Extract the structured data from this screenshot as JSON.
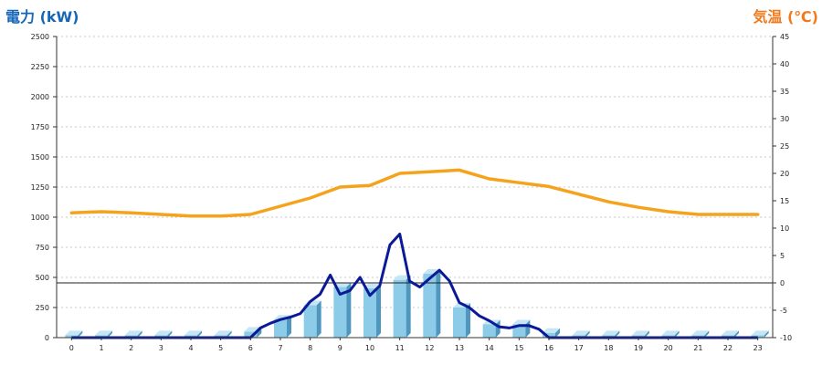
{
  "chart_data": {
    "type": "bar+line",
    "title_left": "電力 (kW)",
    "title_right": "気温 (℃)",
    "categories": [
      "0",
      "1",
      "2",
      "3",
      "4",
      "5",
      "6",
      "7",
      "8",
      "9",
      "10",
      "11",
      "12",
      "13",
      "14",
      "15",
      "16",
      "17",
      "18",
      "19",
      "20",
      "21",
      "22",
      "23"
    ],
    "y_left": {
      "min": 0,
      "max": 2500,
      "ticks": [
        "0",
        "250",
        "500",
        "750",
        "1000",
        "1250",
        "1500",
        "1750",
        "2000",
        "2250",
        "2500"
      ]
    },
    "y_right": {
      "min": -10,
      "max": 45,
      "ticks": [
        "-10",
        "-5",
        "0",
        "5",
        "10",
        "15",
        "20",
        "25",
        "30",
        "35",
        "40",
        "45"
      ]
    },
    "reference_line": {
      "axis": "right",
      "value": 0
    },
    "grid": true,
    "bars": {
      "name": "",
      "values": [
        20,
        20,
        20,
        20,
        20,
        20,
        50,
        150,
        270,
        420,
        410,
        480,
        530,
        250,
        110,
        110,
        40,
        20,
        20,
        20,
        20,
        20,
        20,
        20
      ],
      "color_front": "#8ccce8",
      "color_side": "#4f97bf",
      "color_top": "#c7e6f5"
    },
    "power_line": {
      "name": "",
      "x": [
        0,
        1,
        2,
        3,
        4,
        5,
        6,
        6.33,
        6.67,
        7,
        7.33,
        7.67,
        8,
        8.33,
        8.67,
        9,
        9.33,
        9.67,
        10,
        10.33,
        10.67,
        11,
        11.33,
        11.67,
        12,
        12.33,
        12.67,
        13,
        13.33,
        13.67,
        14,
        14.33,
        14.67,
        15,
        15.33,
        15.67,
        16,
        17,
        18,
        19,
        20,
        21,
        22,
        23
      ],
      "values": [
        0,
        0,
        0,
        0,
        0,
        0,
        0,
        80,
        120,
        150,
        170,
        200,
        300,
        360,
        520,
        360,
        390,
        500,
        350,
        430,
        770,
        860,
        470,
        420,
        490,
        560,
        470,
        290,
        250,
        180,
        140,
        90,
        80,
        100,
        100,
        70,
        0,
        0,
        0,
        0,
        0,
        0,
        0,
        0
      ],
      "color": "#0a1a96"
    },
    "temperature_line": {
      "name": "",
      "values": [
        12.8,
        13.0,
        12.8,
        12.5,
        12.2,
        12.2,
        12.5,
        14.0,
        15.5,
        17.5,
        17.8,
        20.0,
        20.3,
        20.6,
        19.0,
        18.3,
        17.6,
        16.2,
        14.8,
        13.8,
        13.0,
        12.5,
        12.5,
        12.5
      ],
      "color": "#f5a21c"
    }
  }
}
